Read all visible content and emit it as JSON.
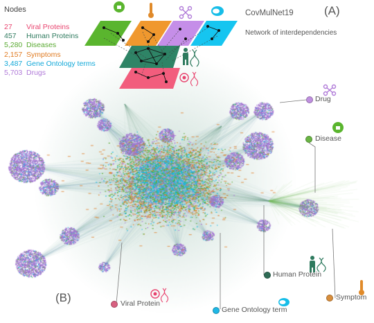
{
  "header": {
    "nodes_heading": "Nodes",
    "app_title": "CovMulNet19",
    "app_subtitle": "Network of interdependencies",
    "panel_a": "(A)",
    "panel_b": "(B)"
  },
  "legend": [
    {
      "count": "27",
      "label": "Viral Proteins",
      "color": "#e8436e"
    },
    {
      "count": "457",
      "label": "Human Proteins",
      "color": "#2e7a5e"
    },
    {
      "count": "5,280",
      "label": "Diseases",
      "color": "#5aaa33"
    },
    {
      "count": "2,157",
      "label": "Symptoms",
      "color": "#e07b22"
    },
    {
      "count": "3,487",
      "label": "Gene Ontology terms",
      "color": "#12a8d8"
    },
    {
      "count": "5,703",
      "label": "Drugs",
      "color": "#b07ad8"
    }
  ],
  "layers": [
    {
      "name": "disease",
      "color": "#5ab52e",
      "icon": "virus-face-icon"
    },
    {
      "name": "symptom",
      "color": "#f0982e",
      "icon": "thermometer-icon"
    },
    {
      "name": "drug",
      "color": "#c58ee8",
      "icon": "molecule-icon"
    },
    {
      "name": "gene-ontology",
      "color": "#16c5f0",
      "icon": "go-cloud-icon"
    },
    {
      "name": "human-protein",
      "color": "#2e8466",
      "icon": "human-dna-icon"
    },
    {
      "name": "viral-protein",
      "color": "#f25d7d",
      "icon": "virus-dna-icon"
    }
  ],
  "callouts": {
    "drug": {
      "label": "Drug",
      "color": "#c090e0"
    },
    "disease": {
      "label": "Disease",
      "color": "#6ab544"
    },
    "human_protein": {
      "label": "Human Protein",
      "color": "#2e6b55"
    },
    "symptom": {
      "label": "Symptom",
      "color": "#d88e3c"
    },
    "viral_protein": {
      "label": "Viral Protein",
      "color": "#d86080"
    },
    "gene_ontology": {
      "label": "Gene Ontology term",
      "color": "#1fb8e6"
    }
  }
}
